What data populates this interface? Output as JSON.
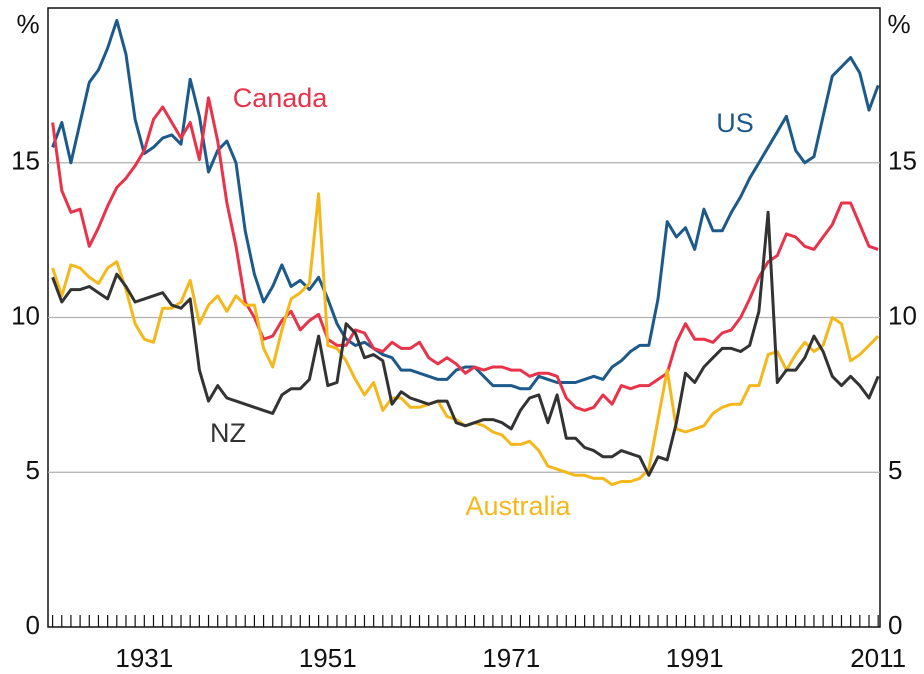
{
  "chart_data": {
    "type": "line",
    "y_unit": "%",
    "x": [
      1921,
      1922,
      1923,
      1924,
      1925,
      1926,
      1927,
      1928,
      1929,
      1930,
      1931,
      1932,
      1933,
      1934,
      1935,
      1936,
      1937,
      1938,
      1939,
      1940,
      1941,
      1942,
      1943,
      1944,
      1945,
      1946,
      1947,
      1948,
      1949,
      1950,
      1951,
      1952,
      1953,
      1954,
      1955,
      1956,
      1957,
      1958,
      1959,
      1960,
      1961,
      1962,
      1963,
      1964,
      1965,
      1966,
      1967,
      1968,
      1969,
      1970,
      1971,
      1972,
      1973,
      1974,
      1975,
      1976,
      1977,
      1978,
      1979,
      1980,
      1981,
      1982,
      1983,
      1984,
      1985,
      1986,
      1987,
      1988,
      1989,
      1990,
      1991,
      1992,
      1993,
      1994,
      1995,
      1996,
      1997,
      1998,
      1999,
      2000,
      2001,
      2002,
      2003,
      2004,
      2005,
      2006,
      2007,
      2008,
      2009,
      2010,
      2011
    ],
    "xlim": [
      1920.5,
      2011.2
    ],
    "xticks": [
      1931,
      1951,
      1971,
      1991,
      2011
    ],
    "ylim": [
      0,
      20
    ],
    "yticks": [
      0,
      5,
      10,
      15
    ],
    "grid": true,
    "series": [
      {
        "name": "US",
        "color": "#1d5a8c",
        "values": [
          15.5,
          16.3,
          15.0,
          16.3,
          17.6,
          18.0,
          18.7,
          19.6,
          18.5,
          16.4,
          15.3,
          15.5,
          15.8,
          15.9,
          15.6,
          17.7,
          16.5,
          14.7,
          15.4,
          15.7,
          15.0,
          12.8,
          11.4,
          10.5,
          11.0,
          11.7,
          11.0,
          11.2,
          10.9,
          11.3,
          10.6,
          9.8,
          9.3,
          9.1,
          9.2,
          9.0,
          8.8,
          8.7,
          8.3,
          8.3,
          8.2,
          8.1,
          8.0,
          8.0,
          8.3,
          8.4,
          8.4,
          8.1,
          7.8,
          7.8,
          7.8,
          7.7,
          7.7,
          8.1,
          8.0,
          7.9,
          7.9,
          7.9,
          8.0,
          8.1,
          8.0,
          8.4,
          8.6,
          8.9,
          9.1,
          9.1,
          10.6,
          13.1,
          12.6,
          12.9,
          12.2,
          13.5,
          12.8,
          12.8,
          13.4,
          13.9,
          14.5,
          15.0,
          15.5,
          16.0,
          16.5,
          15.4,
          15.0,
          15.2,
          16.5,
          17.8,
          18.1,
          18.4,
          17.9,
          16.7,
          17.5
        ]
      },
      {
        "name": "Canada",
        "color": "#e8334a",
        "values": [
          16.3,
          14.1,
          13.4,
          13.5,
          12.3,
          12.9,
          13.6,
          14.2,
          14.5,
          14.9,
          15.4,
          16.4,
          16.8,
          16.3,
          15.8,
          16.3,
          15.1,
          17.1,
          15.7,
          13.7,
          12.3,
          10.5,
          10.0,
          9.3,
          9.4,
          9.9,
          10.2,
          9.6,
          9.9,
          10.1,
          9.3,
          9.1,
          9.1,
          9.6,
          9.5,
          9.0,
          8.9,
          9.2,
          9.0,
          9.0,
          9.2,
          8.7,
          8.5,
          8.7,
          8.5,
          8.2,
          8.4,
          8.3,
          8.4,
          8.4,
          8.3,
          8.3,
          8.1,
          8.2,
          8.2,
          8.1,
          7.4,
          7.1,
          7.0,
          7.1,
          7.5,
          7.2,
          7.8,
          7.7,
          7.8,
          7.8,
          8.0,
          8.2,
          9.2,
          9.8,
          9.3,
          9.3,
          9.2,
          9.5,
          9.6,
          10.0,
          10.6,
          11.3,
          11.8,
          12.0,
          12.7,
          12.6,
          12.3,
          12.2,
          12.6,
          13.0,
          13.7,
          13.7,
          13.0,
          12.3,
          12.2
        ]
      },
      {
        "name": "Australia",
        "color": "#f5b81c",
        "values": [
          11.6,
          10.7,
          11.7,
          11.6,
          11.3,
          11.1,
          11.6,
          11.8,
          10.9,
          9.8,
          9.3,
          9.2,
          10.3,
          10.3,
          10.5,
          11.2,
          9.8,
          10.4,
          10.7,
          10.2,
          10.7,
          10.4,
          10.4,
          9.0,
          8.4,
          9.6,
          10.6,
          10.8,
          11.1,
          14.0,
          9.1,
          9.0,
          8.6,
          8.0,
          7.5,
          7.9,
          7.0,
          7.4,
          7.4,
          7.1,
          7.1,
          7.2,
          7.3,
          6.8,
          6.7,
          6.5,
          6.6,
          6.5,
          6.3,
          6.2,
          5.9,
          5.9,
          6.0,
          5.7,
          5.2,
          5.1,
          5.0,
          4.9,
          4.9,
          4.8,
          4.8,
          4.6,
          4.7,
          4.7,
          4.8,
          5.1,
          6.7,
          8.3,
          6.4,
          6.3,
          6.4,
          6.5,
          6.9,
          7.1,
          7.2,
          7.2,
          7.8,
          7.8,
          8.8,
          8.9,
          8.3,
          8.8,
          9.2,
          8.9,
          9.1,
          10.0,
          9.8,
          8.6,
          8.8,
          9.1,
          9.4
        ]
      },
      {
        "name": "NZ",
        "color": "#333333",
        "values": [
          11.3,
          10.5,
          10.9,
          10.9,
          11.0,
          10.8,
          10.6,
          11.4,
          11.0,
          10.5,
          10.6,
          10.7,
          10.8,
          10.4,
          10.3,
          10.6,
          8.3,
          7.3,
          7.8,
          7.4,
          7.3,
          7.2,
          7.1,
          7.0,
          6.9,
          7.5,
          7.7,
          7.7,
          8.0,
          9.4,
          7.8,
          7.9,
          9.8,
          9.5,
          8.7,
          8.8,
          8.6,
          7.2,
          7.6,
          7.4,
          7.3,
          7.2,
          7.3,
          7.3,
          6.6,
          6.5,
          6.6,
          6.7,
          6.7,
          6.6,
          6.4,
          7.0,
          7.4,
          7.5,
          6.6,
          7.5,
          6.1,
          6.1,
          5.8,
          5.7,
          5.5,
          5.5,
          5.7,
          5.6,
          5.5,
          4.9,
          5.5,
          5.4,
          6.6,
          8.2,
          7.9,
          8.4,
          8.7,
          9.0,
          9.0,
          8.9,
          9.1,
          10.2,
          13.4,
          7.9,
          8.3,
          8.3,
          8.7,
          9.4,
          8.9,
          8.1,
          7.8,
          8.1,
          7.8,
          7.4,
          8.1
        ]
      }
    ]
  }
}
